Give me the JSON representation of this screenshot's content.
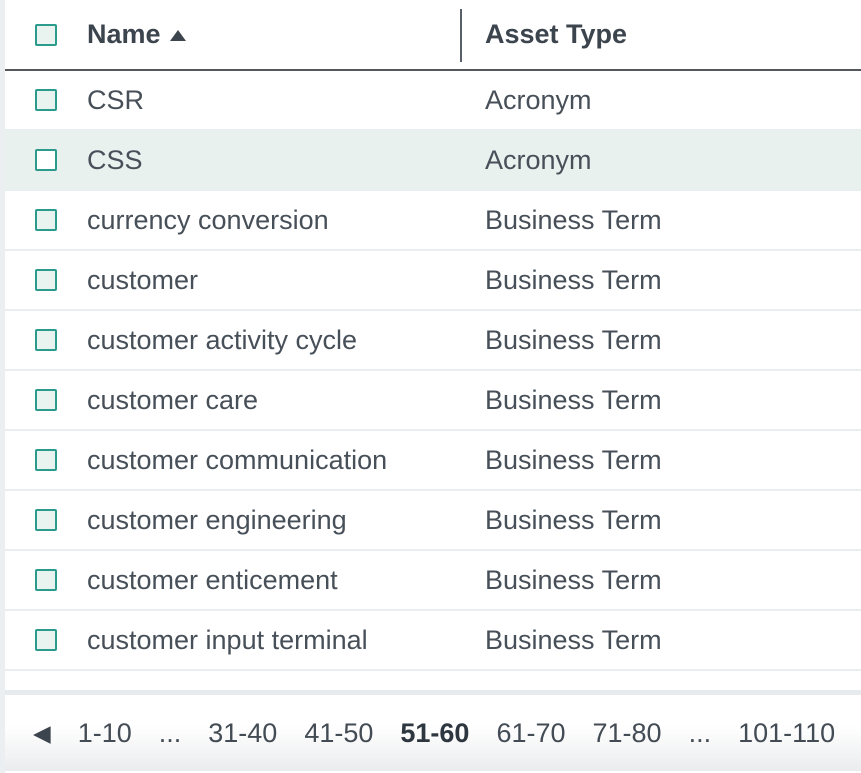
{
  "table": {
    "columns": [
      {
        "label": "Name",
        "sorted": "ascending"
      },
      {
        "label": "Asset Type",
        "sorted": "none"
      }
    ],
    "rows": [
      {
        "name": "CSR",
        "asset_type": "Acronym",
        "highlighted": false
      },
      {
        "name": "CSS",
        "asset_type": "Acronym",
        "highlighted": true
      },
      {
        "name": "currency conversion",
        "asset_type": "Business Term",
        "highlighted": false
      },
      {
        "name": "customer",
        "asset_type": "Business Term",
        "highlighted": false
      },
      {
        "name": "customer activity cycle",
        "asset_type": "Business Term",
        "highlighted": false
      },
      {
        "name": "customer care",
        "asset_type": "Business Term",
        "highlighted": false
      },
      {
        "name": "customer communication",
        "asset_type": "Business Term",
        "highlighted": false
      },
      {
        "name": "customer engineering",
        "asset_type": "Business Term",
        "highlighted": false
      },
      {
        "name": "customer enticement",
        "asset_type": "Business Term",
        "highlighted": false
      },
      {
        "name": "customer input terminal",
        "asset_type": "Business Term",
        "highlighted": false
      }
    ]
  },
  "pagination": {
    "prev_icon": "◀",
    "next_icon": "▶",
    "pages": [
      {
        "label": "1-10",
        "current": false,
        "ellipsis": false
      },
      {
        "label": "...",
        "current": false,
        "ellipsis": true
      },
      {
        "label": "31-40",
        "current": false,
        "ellipsis": false
      },
      {
        "label": "41-50",
        "current": false,
        "ellipsis": false
      },
      {
        "label": "51-60",
        "current": true,
        "ellipsis": false
      },
      {
        "label": "61-70",
        "current": false,
        "ellipsis": false
      },
      {
        "label": "71-80",
        "current": false,
        "ellipsis": false
      },
      {
        "label": "...",
        "current": false,
        "ellipsis": true
      },
      {
        "label": "101-110",
        "current": false,
        "ellipsis": false
      }
    ]
  },
  "icons": {
    "sort_ascending": "up-triangle",
    "checkbox_state": "unchecked"
  },
  "colors": {
    "accent_teal": "#2b9b8b",
    "checkbox_fill": "#e9f4f0",
    "row_highlight": "#e8f1ee",
    "row_text": "#474f58",
    "header_text": "#3c444d",
    "row_separator": "#e9eef0",
    "header_underline": "#54585c",
    "left_strip": "#ebeff2",
    "footer_band": "#e8ebee"
  }
}
